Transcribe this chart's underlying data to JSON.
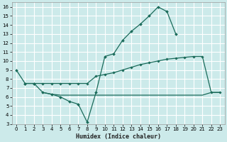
{
  "xlabel": "Humidex (Indice chaleur)",
  "bg_color": "#cceaea",
  "grid_color": "#ffffff",
  "line_color": "#1a6b5a",
  "xlim": [
    -0.5,
    23.5
  ],
  "ylim": [
    3,
    16.5
  ],
  "xticks": [
    0,
    1,
    2,
    3,
    4,
    5,
    6,
    7,
    8,
    9,
    10,
    11,
    12,
    13,
    14,
    15,
    16,
    17,
    18,
    19,
    20,
    21,
    22,
    23
  ],
  "yticks": [
    3,
    4,
    5,
    6,
    7,
    8,
    9,
    10,
    11,
    12,
    13,
    14,
    15,
    16
  ],
  "line1_x": [
    0,
    1,
    2,
    3,
    4,
    5,
    6,
    7,
    8,
    9,
    10,
    11,
    12,
    13,
    14,
    15,
    16,
    17,
    18,
    19,
    20,
    21,
    22,
    23
  ],
  "line1_y": [
    9.0,
    7.5,
    7.5,
    6.5,
    6.3,
    6.0,
    5.5,
    5.2,
    3.2,
    6.5,
    10.5,
    10.8,
    12.3,
    13.3,
    14.1,
    15.0,
    16.0,
    15.5,
    13.0,
    null,
    null,
    null,
    null,
    null
  ],
  "line2_x": [
    0,
    1,
    2,
    3,
    4,
    5,
    6,
    7,
    8,
    9,
    10,
    11,
    12,
    13,
    14,
    15,
    16,
    17,
    18,
    19,
    20,
    21,
    22,
    23
  ],
  "line2_y": [
    null,
    7.5,
    7.5,
    7.5,
    7.5,
    7.5,
    7.5,
    7.5,
    7.5,
    8.3,
    8.5,
    8.7,
    9.0,
    9.3,
    9.6,
    9.8,
    10.0,
    10.2,
    10.3,
    10.4,
    10.5,
    10.5,
    6.5,
    6.5
  ],
  "line3_x": [
    3,
    4,
    5,
    6,
    7,
    8,
    9,
    10,
    11,
    12,
    13,
    14,
    15,
    16,
    17,
    18,
    19,
    20,
    21,
    22,
    23
  ],
  "line3_y": [
    6.5,
    6.3,
    6.2,
    6.2,
    6.2,
    6.2,
    6.2,
    6.2,
    6.2,
    6.2,
    6.2,
    6.2,
    6.2,
    6.2,
    6.2,
    6.2,
    6.2,
    6.2,
    6.2,
    6.5,
    6.5
  ]
}
